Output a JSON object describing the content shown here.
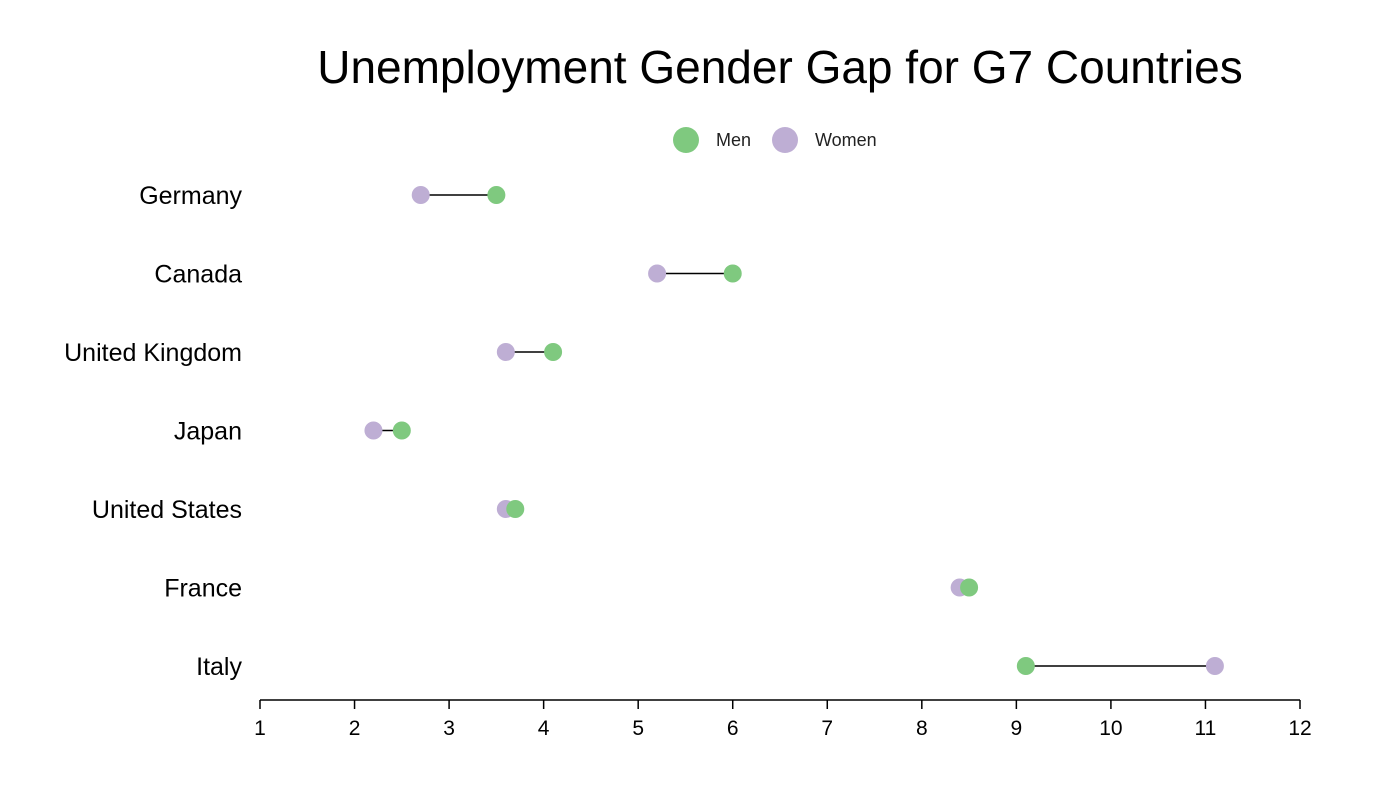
{
  "chart_data": {
    "type": "scatter",
    "subtype": "dumbbell",
    "title": "Unemployment Gender Gap for G7 Countries",
    "xlabel": "",
    "ylabel": "",
    "xlim": [
      1,
      12
    ],
    "xticks": [
      1,
      2,
      3,
      4,
      5,
      6,
      7,
      8,
      9,
      10,
      11,
      12
    ],
    "grid": false,
    "legend_position": "top-center",
    "categories": [
      "Germany",
      "Canada",
      "United Kingdom",
      "Japan",
      "United States",
      "France",
      "Italy"
    ],
    "series": [
      {
        "name": "Men",
        "color": "#7fc97f",
        "values": [
          3.5,
          6.0,
          4.1,
          2.5,
          3.7,
          8.5,
          9.1
        ]
      },
      {
        "name": "Women",
        "color": "#beaed4",
        "values": [
          2.7,
          5.2,
          3.6,
          2.2,
          3.6,
          8.4,
          11.1
        ]
      }
    ],
    "connector_color": "#000000"
  }
}
